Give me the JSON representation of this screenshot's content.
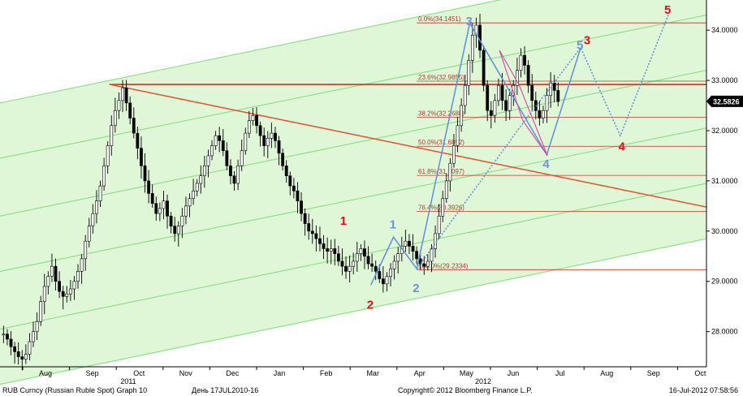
{
  "chart_data": {
    "type": "line",
    "subtype": "candlestick",
    "title": "",
    "y_axis": {
      "ylim": [
        27.3,
        34.6
      ],
      "ticks": [
        "28.0000",
        "29.0000",
        "30.0000",
        "31.0000",
        "32.0000",
        "33.0000",
        "34.0000"
      ],
      "tick_values": [
        28,
        29,
        30,
        31,
        32,
        33,
        34
      ],
      "position": "right"
    },
    "x_axis": {
      "month_labels": [
        "Aug",
        "Sep",
        "Oct",
        "Nov",
        "Dec",
        "Jan",
        "Feb",
        "Mar",
        "Apr",
        "May",
        "Jun",
        "Jul",
        "Aug",
        "Sep",
        "Oct"
      ],
      "year_labels": [
        "2011",
        "2012"
      ]
    },
    "last_price": {
      "value": 32.5826,
      "label": "32.5826",
      "color": "#000000"
    },
    "series": [
      {
        "type": "candlestick",
        "note": "daily candles, approximate",
        "values": [
          27.95,
          27.85,
          27.7,
          27.6,
          27.5,
          27.45,
          27.55,
          27.8,
          28.0,
          28.2,
          28.6,
          28.9,
          29.1,
          29.3,
          29.0,
          28.8,
          28.7,
          28.75,
          28.85,
          29.0,
          29.2,
          29.45,
          29.8,
          30.1,
          30.35,
          30.6,
          30.9,
          31.3,
          31.7,
          32.1,
          32.4,
          32.6,
          32.85,
          32.55,
          32.25,
          31.95,
          31.65,
          31.3,
          31.0,
          30.75,
          30.55,
          30.35,
          30.45,
          30.6,
          30.3,
          30.1,
          29.95,
          30.1,
          30.3,
          30.5,
          30.65,
          30.8,
          30.95,
          31.1,
          31.3,
          31.5,
          31.7,
          31.9,
          31.8,
          31.6,
          31.3,
          31.1,
          30.95,
          31.3,
          31.6,
          31.95,
          32.2,
          32.3,
          32.1,
          31.9,
          31.7,
          31.85,
          31.95,
          31.8,
          31.55,
          31.3,
          31.1,
          30.9,
          30.8,
          30.6,
          30.35,
          30.15,
          30.0,
          29.95,
          29.85,
          29.75,
          29.65,
          29.6,
          29.65,
          29.55,
          29.4,
          29.3,
          29.2,
          29.3,
          29.4,
          29.55,
          29.65,
          29.5,
          29.35,
          29.3,
          29.2,
          29.05,
          28.95,
          29.1,
          29.25,
          29.4,
          29.55,
          29.7,
          29.8,
          29.7,
          29.6,
          29.45,
          29.35,
          29.3,
          29.4,
          29.65,
          29.95,
          30.3,
          30.65,
          31.0,
          31.35,
          31.7,
          32.1,
          32.5,
          32.9,
          33.4,
          33.9,
          34.1,
          33.6,
          32.9,
          32.4,
          32.3,
          32.6,
          32.9,
          32.6,
          32.4,
          32.7,
          32.9,
          33.2,
          33.5,
          33.3,
          32.9,
          32.6,
          32.4,
          32.25,
          32.4,
          32.7,
          32.95,
          32.8,
          32.58
        ]
      }
    ],
    "horizontal_lines": [
      {
        "label": "0.0%(34.1451)",
        "value": 34.1451,
        "color": "#c0392b"
      },
      {
        "label": "23.6%(32.9855)",
        "value": 32.9855,
        "color": "#c0392b"
      },
      {
        "label": "38.2%(32.2688)",
        "value": 32.2688,
        "color": "#c0392b"
      },
      {
        "label": "50.0%(31.6892)",
        "value": 31.6892,
        "color": "#c0392b"
      },
      {
        "label": "61.8%(31.1097)",
        "value": 31.1097,
        "color": "#c0392b"
      },
      {
        "label": "76.4%(30.3926)",
        "value": 30.3926,
        "color": "#c0392b"
      },
      {
        "label": "100.0%(29.2334)",
        "value": 29.2334,
        "color": "#c0392b"
      }
    ],
    "resistance_line": {
      "value": 32.92,
      "color": "#c0392b"
    },
    "trend_line": {
      "from": [
        0.155,
        32.92
      ],
      "to": [
        1.0,
        30.48
      ],
      "color": "#e05a3a"
    },
    "channel": {
      "fill": "#d9f5d0",
      "line_color": "#8fe08a",
      "lines": [
        {
          "left": 32.55,
          "right": 35.45
        },
        {
          "left": 31.45,
          "right": 34.3
        },
        {
          "left": 30.3,
          "right": 33.2
        },
        {
          "left": 29.2,
          "right": 32.05
        },
        {
          "left": 28.05,
          "right": 30.95
        },
        {
          "left": 26.95,
          "right": 29.85
        }
      ]
    },
    "wave_labels": [
      {
        "text": "1",
        "color": "red",
        "x": 0.487,
        "y": 30.22
      },
      {
        "text": "2",
        "color": "red",
        "x": 0.525,
        "y": 28.55
      },
      {
        "text": "3",
        "color": "red",
        "x": 0.832,
        "y": 33.82
      },
      {
        "text": "4",
        "color": "red",
        "x": 0.881,
        "y": 31.7
      },
      {
        "text": "5",
        "color": "red",
        "x": 0.946,
        "y": 34.42
      },
      {
        "text": "1",
        "color": "blue",
        "x": 0.557,
        "y": 30.15
      },
      {
        "text": "2",
        "color": "blue",
        "x": 0.59,
        "y": 28.88
      },
      {
        "text": "3",
        "color": "blue",
        "x": 0.665,
        "y": 34.2
      },
      {
        "text": "4",
        "color": "blue",
        "x": 0.774,
        "y": 31.35
      },
      {
        "text": "5",
        "color": "blue",
        "x": 0.822,
        "y": 33.72
      }
    ],
    "wave_paths": {
      "blue_solid": [
        [
          0.525,
          28.93
        ],
        [
          0.557,
          29.88
        ],
        [
          0.59,
          29.25
        ],
        [
          0.665,
          34.14
        ],
        [
          0.774,
          31.52
        ],
        [
          0.822,
          33.65
        ]
      ],
      "blue_dotted": [
        [
          0.59,
          29.25
        ],
        [
          0.735,
          32.05
        ],
        [
          0.822,
          33.65
        ],
        [
          0.878,
          31.9
        ],
        [
          0.946,
          34.3
        ]
      ],
      "pink": [
        [
          0.707,
          33.6
        ],
        [
          0.74,
          32.2
        ],
        [
          0.775,
          31.5
        ],
        [
          0.735,
          32.9
        ],
        [
          0.707,
          33.6
        ]
      ]
    }
  },
  "footer": {
    "left": "RUB Curncy (Russian Ruble Spot) Graph 10",
    "period": "День 17JUL2010-16",
    "copyright": "Copyright© 2012 Bloomberg Finance L.P.",
    "timestamp": "16-Jul-2012 07:58:56"
  }
}
